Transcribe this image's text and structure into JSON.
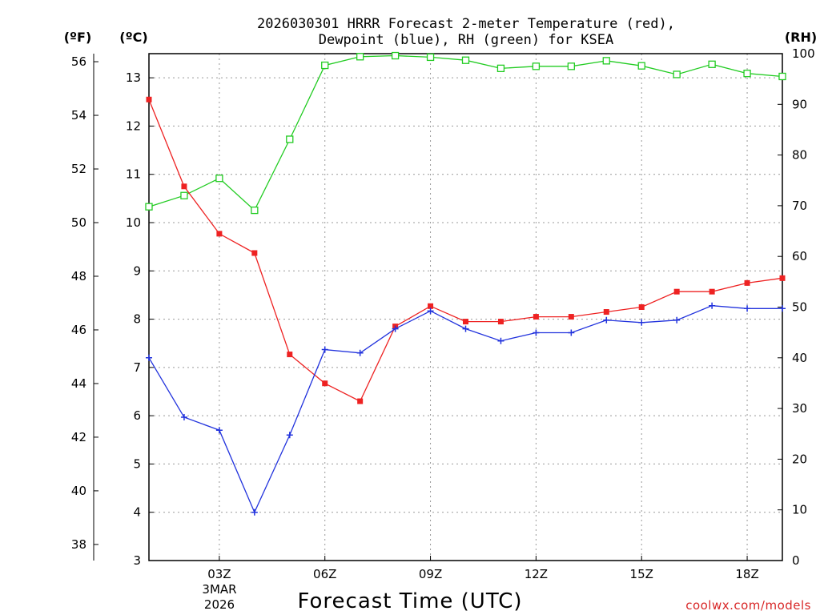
{
  "chart_data": {
    "type": "line",
    "title_line1": "2026030301 HRRR Forecast 2-meter Temperature (red),",
    "title_line2": "Dewpoint (blue), RH (green) for KSEA",
    "xlabel": "Forecast Time (UTC)",
    "x_hours": [
      1,
      2,
      3,
      4,
      5,
      6,
      7,
      8,
      9,
      10,
      11,
      12,
      13,
      14,
      15,
      16,
      17,
      18,
      19
    ],
    "xlim": [
      1,
      19
    ],
    "x_ticks": [
      {
        "hour": 3,
        "label": "03Z"
      },
      {
        "hour": 6,
        "label": "06Z"
      },
      {
        "hour": 9,
        "label": "09Z"
      },
      {
        "hour": 12,
        "label": "12Z"
      },
      {
        "hour": 15,
        "label": "15Z"
      },
      {
        "hour": 18,
        "label": "18Z"
      }
    ],
    "date_label_line1": "3MAR",
    "date_label_line2": "2026",
    "left_axis_f": {
      "unit_label": "(ºF)",
      "ticks": [
        38,
        40,
        42,
        44,
        46,
        48,
        50,
        52,
        54,
        56
      ]
    },
    "left_axis_c": {
      "unit_label": "(ºC)",
      "ylim": [
        3,
        13.5
      ],
      "ticks": [
        3,
        4,
        5,
        6,
        7,
        8,
        9,
        10,
        11,
        12,
        13
      ]
    },
    "right_axis_rh": {
      "unit_label": "(RH)",
      "ylim": [
        0,
        100
      ],
      "ticks": [
        0,
        10,
        20,
        30,
        40,
        50,
        60,
        70,
        80,
        90,
        100
      ]
    },
    "series": [
      {
        "name": "2-meter Temperature",
        "color": "#ee2222",
        "marker": "filled-square",
        "units": "C",
        "values": [
          12.55,
          10.75,
          9.77,
          9.37,
          7.27,
          6.67,
          6.3,
          7.85,
          8.27,
          7.95,
          7.95,
          8.05,
          8.05,
          8.15,
          8.25,
          8.57,
          8.57,
          8.75,
          8.85
        ]
      },
      {
        "name": "Dewpoint",
        "color": "#2233dd",
        "marker": "plus",
        "units": "C",
        "values": [
          7.2,
          5.97,
          5.7,
          4.0,
          5.6,
          7.37,
          7.3,
          7.8,
          8.17,
          7.8,
          7.55,
          7.72,
          7.72,
          7.98,
          7.93,
          7.98,
          8.28,
          8.22,
          8.22
        ]
      },
      {
        "name": "RH",
        "color": "#22cc22",
        "marker": "open-square",
        "units": "%",
        "values": [
          69.8,
          72.0,
          75.4,
          69.1,
          83.1,
          97.7,
          99.4,
          99.6,
          99.3,
          98.7,
          97.1,
          97.5,
          97.5,
          98.6,
          97.6,
          95.9,
          97.9,
          96.1,
          95.5
        ]
      }
    ]
  },
  "credit": {
    "text": "coolwx.com/models",
    "color": "#d82828"
  }
}
